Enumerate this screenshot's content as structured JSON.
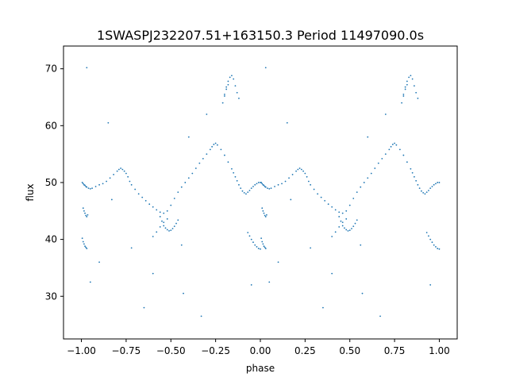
{
  "chart_data": {
    "type": "scatter",
    "title": "1SWASPJ232207.51+163150.3 Period 11497090.0s",
    "xlabel": "phase",
    "ylabel": "flux",
    "xlim": [
      -1.1,
      1.1
    ],
    "ylim": [
      22.5,
      74
    ],
    "xticks": [
      -1.0,
      -0.75,
      -0.5,
      -0.25,
      0.0,
      0.25,
      0.5,
      0.75,
      1.0
    ],
    "xtick_labels": [
      "−1.00",
      "−0.75",
      "−0.50",
      "−0.25",
      "0.00",
      "0.25",
      "0.50",
      "0.75",
      "1.00"
    ],
    "yticks": [
      30,
      40,
      50,
      60,
      70
    ],
    "ytick_labels": [
      "30",
      "40",
      "50",
      "60",
      "70"
    ],
    "grid": false,
    "color": "#1f77b4",
    "series": [
      {
        "x": [
          -0.995,
          -0.99,
          -0.985,
          -0.98,
          -0.975,
          -0.97,
          -0.96,
          -0.95,
          -0.94,
          -0.92,
          -0.9,
          -0.88,
          -0.86,
          -0.84,
          -0.82,
          -0.8,
          -0.79,
          -0.78,
          -0.77,
          -0.76,
          -0.75,
          -0.74,
          -0.73,
          -0.72,
          -0.7,
          -0.68,
          -0.66,
          -0.64,
          -0.62,
          -0.6,
          -0.58,
          -0.56,
          -0.54,
          -0.52,
          -0.5,
          -0.48,
          -0.46,
          -0.44,
          -0.42,
          -0.4,
          -0.38,
          -0.36,
          -0.34,
          -0.32,
          -0.3,
          -0.28,
          -0.27,
          -0.26,
          -0.25,
          -0.24,
          -0.22,
          -0.2,
          -0.18,
          -0.16,
          -0.15,
          -0.14,
          -0.13,
          -0.12,
          -0.11,
          -0.1,
          -0.09,
          -0.08,
          -0.07,
          -0.06,
          -0.05,
          -0.04,
          -0.03,
          -0.02,
          -0.01,
          0.0,
          -0.99,
          -0.985,
          -0.98,
          -0.975,
          -0.97,
          -0.965,
          -0.995,
          -0.99,
          -0.985,
          -0.98,
          -0.975,
          -0.97,
          -0.56,
          -0.55,
          -0.54,
          -0.53,
          -0.52,
          -0.51,
          -0.5,
          -0.49,
          -0.48,
          -0.47,
          -0.46,
          -0.6,
          -0.58,
          -0.56,
          -0.54,
          -0.52,
          -0.2,
          -0.19,
          -0.18,
          -0.17,
          -0.16,
          -0.15,
          -0.14,
          -0.13,
          -0.12,
          -0.21,
          -0.2,
          -0.19,
          -0.18,
          -0.07,
          -0.06,
          -0.05,
          -0.04,
          -0.03,
          -0.02,
          -0.01,
          0.0,
          -0.95,
          -0.9,
          -0.85,
          -0.72,
          -0.65,
          -0.6,
          -0.43,
          -0.4,
          -0.33,
          -0.3,
          -0.05,
          -0.97,
          -0.83,
          -0.44,
          0.005,
          0.01,
          0.015,
          0.02,
          0.025,
          0.03,
          0.04,
          0.05,
          0.06,
          0.08,
          0.1,
          0.12,
          0.14,
          0.16,
          0.18,
          0.2,
          0.21,
          0.22,
          0.23,
          0.24,
          0.25,
          0.26,
          0.27,
          0.28,
          0.3,
          0.32,
          0.34,
          0.36,
          0.38,
          0.4,
          0.42,
          0.44,
          0.46,
          0.48,
          0.5,
          0.52,
          0.54,
          0.56,
          0.58,
          0.6,
          0.62,
          0.64,
          0.66,
          0.68,
          0.7,
          0.72,
          0.73,
          0.74,
          0.75,
          0.76,
          0.78,
          0.8,
          0.82,
          0.84,
          0.85,
          0.86,
          0.87,
          0.88,
          0.89,
          0.9,
          0.91,
          0.92,
          0.93,
          0.94,
          0.95,
          0.96,
          0.97,
          0.98,
          0.99,
          1.0,
          0.01,
          0.015,
          0.02,
          0.025,
          0.03,
          0.035,
          0.005,
          0.01,
          0.015,
          0.02,
          0.025,
          0.03,
          0.44,
          0.45,
          0.46,
          0.47,
          0.48,
          0.49,
          0.5,
          0.51,
          0.52,
          0.53,
          0.54,
          0.4,
          0.42,
          0.44,
          0.46,
          0.48,
          0.8,
          0.81,
          0.82,
          0.83,
          0.84,
          0.85,
          0.86,
          0.87,
          0.88,
          0.79,
          0.8,
          0.81,
          0.82,
          0.93,
          0.94,
          0.95,
          0.96,
          0.97,
          0.98,
          0.99,
          1.0,
          0.05,
          0.1,
          0.15,
          0.28,
          0.35,
          0.4,
          0.57,
          0.6,
          0.67,
          0.7,
          0.95,
          0.03,
          0.17,
          0.56
        ],
        "y": [
          50.0,
          49.8,
          49.6,
          49.5,
          49.3,
          49.2,
          49.0,
          48.9,
          49.0,
          49.3,
          49.6,
          49.8,
          50.2,
          50.8,
          51.4,
          52.0,
          52.3,
          52.5,
          52.3,
          52.0,
          51.6,
          51.0,
          50.2,
          49.6,
          48.8,
          48.0,
          47.4,
          46.8,
          46.2,
          45.7,
          45.2,
          44.8,
          44.6,
          45.0,
          46.0,
          47.2,
          48.3,
          49.2,
          50.0,
          50.8,
          51.6,
          52.5,
          53.4,
          54.2,
          55.0,
          55.8,
          56.3,
          56.7,
          56.9,
          56.6,
          55.8,
          54.8,
          53.6,
          52.4,
          51.7,
          51.0,
          50.3,
          49.6,
          49.0,
          48.5,
          48.2,
          48.0,
          48.3,
          48.6,
          49.0,
          49.3,
          49.6,
          49.8,
          50.0,
          50.0,
          45.5,
          45.0,
          44.6,
          44.2,
          44.0,
          44.3,
          40.2,
          39.6,
          39.2,
          38.8,
          38.6,
          38.4,
          44.0,
          43.2,
          42.4,
          42.0,
          41.7,
          41.5,
          41.6,
          41.9,
          42.3,
          42.8,
          43.4,
          40.5,
          41.3,
          42.2,
          43.0,
          43.6,
          65.5,
          66.8,
          67.8,
          68.5,
          68.8,
          68.2,
          67.0,
          65.8,
          64.8,
          64.0,
          65.2,
          66.4,
          67.2,
          41.2,
          40.6,
          40.0,
          39.5,
          39.0,
          38.7,
          38.4,
          38.3,
          32.5,
          36.0,
          60.5,
          38.5,
          28.0,
          34.0,
          30.5,
          58.0,
          26.5,
          62.0,
          32.0,
          70.2,
          47.0,
          39.0,
          50.0,
          49.8,
          49.6,
          49.5,
          49.3,
          49.2,
          49.0,
          48.9,
          49.0,
          49.3,
          49.6,
          49.8,
          50.2,
          50.8,
          51.4,
          52.0,
          52.3,
          52.5,
          52.3,
          52.0,
          51.6,
          51.0,
          50.2,
          49.6,
          48.8,
          48.0,
          47.4,
          46.8,
          46.2,
          45.7,
          45.2,
          44.8,
          44.6,
          45.0,
          46.0,
          47.2,
          48.3,
          49.2,
          50.0,
          50.8,
          51.6,
          52.5,
          53.4,
          54.2,
          55.0,
          55.8,
          56.3,
          56.7,
          56.9,
          56.6,
          55.8,
          54.8,
          53.6,
          52.4,
          51.7,
          51.0,
          50.3,
          49.6,
          49.0,
          48.5,
          48.2,
          48.0,
          48.3,
          48.6,
          49.0,
          49.3,
          49.6,
          49.8,
          50.0,
          50.0,
          45.5,
          45.0,
          44.6,
          44.2,
          44.0,
          44.3,
          40.2,
          39.6,
          39.2,
          38.8,
          38.6,
          38.4,
          44.0,
          43.2,
          42.4,
          42.0,
          41.7,
          41.5,
          41.6,
          41.9,
          42.3,
          42.8,
          43.4,
          40.5,
          41.3,
          42.2,
          43.0,
          43.6,
          65.5,
          66.8,
          67.8,
          68.5,
          68.8,
          68.2,
          67.0,
          65.8,
          64.8,
          64.0,
          65.2,
          66.4,
          67.2,
          41.2,
          40.6,
          40.0,
          39.5,
          39.0,
          38.7,
          38.4,
          38.3,
          32.5,
          36.0,
          60.5,
          38.5,
          28.0,
          34.0,
          30.5,
          58.0,
          26.5,
          62.0,
          32.0,
          70.2,
          47.0,
          39.0
        ]
      }
    ]
  }
}
